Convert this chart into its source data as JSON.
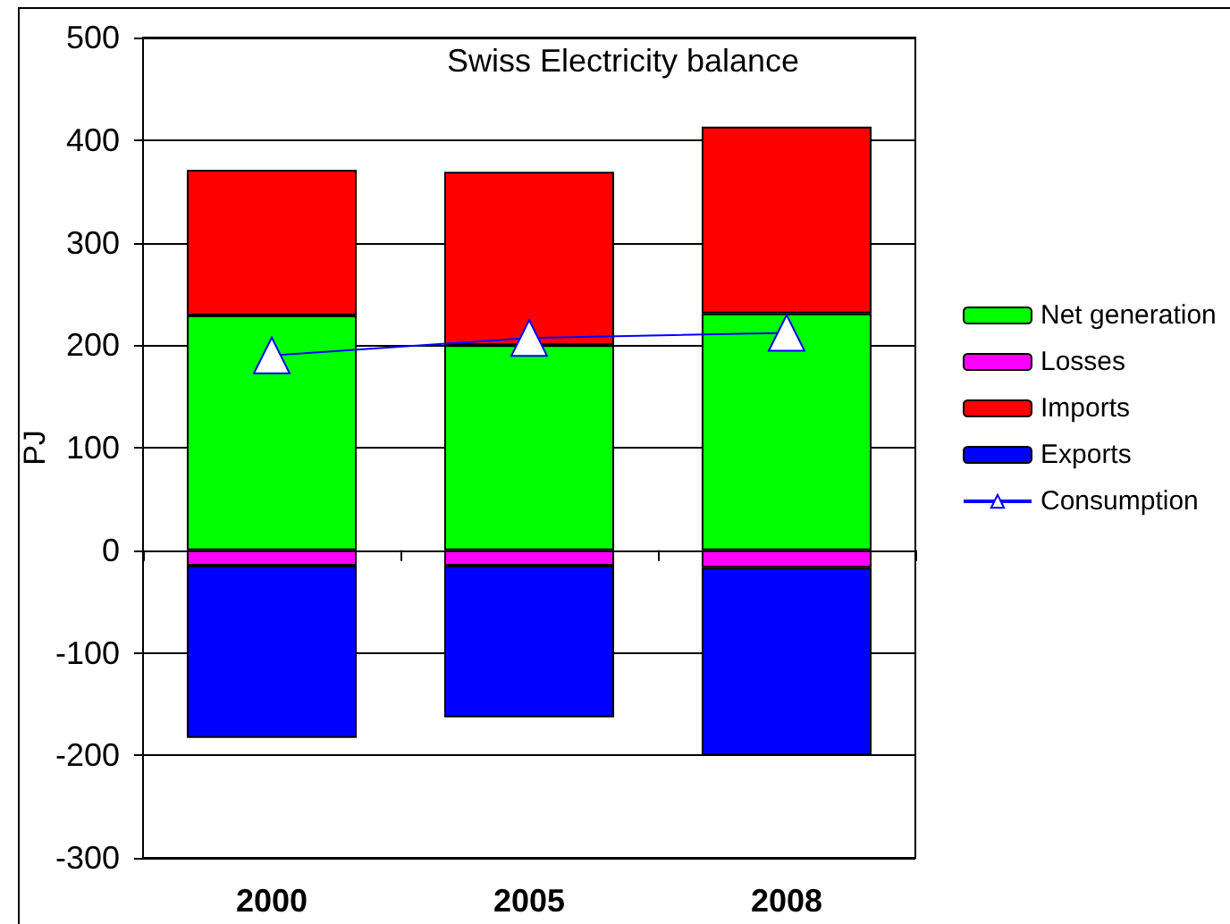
{
  "chart_data": {
    "type": "bar",
    "title": "Swiss Electricity balance",
    "ylabel": "PJ",
    "categories": [
      "2000",
      "2005",
      "2008"
    ],
    "stacked": true,
    "series": [
      {
        "name": "Net generation",
        "color": "#00ff00",
        "values": [
          229,
          200,
          231
        ]
      },
      {
        "name": "Losses",
        "color": "#ff00ff",
        "values": [
          -15,
          -15,
          -17
        ]
      },
      {
        "name": "Imports",
        "color": "#ff0000",
        "values": [
          142,
          169,
          182
        ]
      },
      {
        "name": "Exports",
        "color": "#0000ff",
        "values": [
          -168,
          -148,
          -183
        ]
      },
      {
        "name": "Consumption",
        "type": "line",
        "color": "#0000ff",
        "values": [
          190,
          207,
          212
        ]
      }
    ],
    "ylim": [
      -300,
      500
    ],
    "yticks": [
      -300,
      -200,
      -100,
      0,
      100,
      200,
      300,
      400,
      500
    ],
    "grid": "y",
    "legend": "right",
    "marker": "triangle"
  }
}
